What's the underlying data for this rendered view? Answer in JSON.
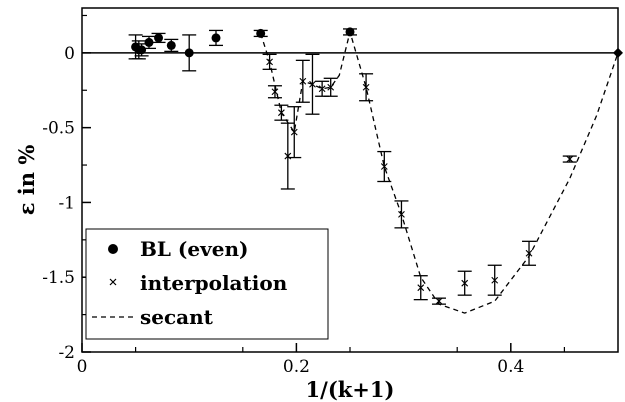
{
  "chart_data": {
    "type": "scatter",
    "xlabel": "1/(k+1)",
    "ylabel": "ε in %",
    "xlim": [
      0,
      0.5
    ],
    "ylim": [
      -2,
      0.3
    ],
    "x_ticks": [
      0,
      0.2,
      0.4
    ],
    "x_tick_labels": [
      "0",
      "0.2",
      "0.4"
    ],
    "y_ticks": [
      0,
      -0.5,
      -1,
      -1.5,
      -2
    ],
    "y_tick_labels": [
      "0",
      "-0.5",
      "-1",
      "-1.5",
      "-2"
    ],
    "grid": false,
    "reference_line": 0,
    "legend_position": "bottom-left",
    "legend": [
      {
        "label": "BL (even)",
        "marker": "circle"
      },
      {
        "label": "interpolation",
        "marker": "x"
      },
      {
        "label": "secant",
        "marker": "dashed-line"
      }
    ],
    "series": [
      {
        "name": "BL (even)",
        "marker": "circle",
        "points": [
          {
            "x": 0.05,
            "y": 0.04,
            "err": 0.08
          },
          {
            "x": 0.053,
            "y": 0.02,
            "err": 0.06
          },
          {
            "x": 0.0556,
            "y": 0.02,
            "err": 0.04
          },
          {
            "x": 0.0625,
            "y": 0.07,
            "err": 0.04
          },
          {
            "x": 0.0714,
            "y": 0.1,
            "err": 0.03
          },
          {
            "x": 0.0833,
            "y": 0.05,
            "err": 0.04
          },
          {
            "x": 0.1,
            "y": 0.0,
            "err": 0.12
          },
          {
            "x": 0.125,
            "y": 0.1,
            "err": 0.05
          },
          {
            "x": 0.1667,
            "y": 0.13,
            "err": 0.02
          },
          {
            "x": 0.25,
            "y": 0.14,
            "err": 0.02
          },
          {
            "x": 0.5,
            "y": 0.0,
            "err": 0
          }
        ]
      },
      {
        "name": "interpolation",
        "marker": "x",
        "points": [
          {
            "x": 0.175,
            "y": -0.06,
            "err": 0.05
          },
          {
            "x": 0.18,
            "y": -0.26,
            "err": 0.04
          },
          {
            "x": 0.186,
            "y": -0.4,
            "err": 0.05
          },
          {
            "x": 0.192,
            "y": -0.69,
            "err": 0.22
          },
          {
            "x": 0.198,
            "y": -0.53,
            "err": 0.17
          },
          {
            "x": 0.206,
            "y": -0.19,
            "err": 0.14
          },
          {
            "x": 0.215,
            "y": -0.21,
            "err": 0.2
          },
          {
            "x": 0.224,
            "y": -0.24,
            "err": 0.05
          },
          {
            "x": 0.232,
            "y": -0.23,
            "err": 0.06
          },
          {
            "x": 0.265,
            "y": -0.23,
            "err": 0.09
          },
          {
            "x": 0.282,
            "y": -0.76,
            "err": 0.1
          },
          {
            "x": 0.298,
            "y": -1.08,
            "err": 0.09
          },
          {
            "x": 0.316,
            "y": -1.57,
            "err": 0.08
          },
          {
            "x": 0.333,
            "y": -1.66,
            "err": 0.02
          },
          {
            "x": 0.357,
            "y": -1.54,
            "err": 0.08
          },
          {
            "x": 0.385,
            "y": -1.52,
            "err": 0.1
          },
          {
            "x": 0.417,
            "y": -1.34,
            "err": 0.08
          },
          {
            "x": 0.455,
            "y": -0.71,
            "err": 0.02
          }
        ]
      },
      {
        "name": "secant",
        "marker": "dashed-line",
        "points": [
          {
            "x": 0.1667,
            "y": 0.13
          },
          {
            "x": 0.175,
            "y": -0.06
          },
          {
            "x": 0.186,
            "y": -0.4
          },
          {
            "x": 0.198,
            "y": -0.53
          },
          {
            "x": 0.206,
            "y": -0.19
          },
          {
            "x": 0.215,
            "y": -0.21
          },
          {
            "x": 0.224,
            "y": -0.24
          },
          {
            "x": 0.232,
            "y": -0.23
          },
          {
            "x": 0.24,
            "y": -0.15
          },
          {
            "x": 0.25,
            "y": 0.14
          },
          {
            "x": 0.265,
            "y": -0.23
          },
          {
            "x": 0.282,
            "y": -0.76
          },
          {
            "x": 0.298,
            "y": -1.08
          },
          {
            "x": 0.316,
            "y": -1.5
          },
          {
            "x": 0.333,
            "y": -1.68
          },
          {
            "x": 0.357,
            "y": -1.74
          },
          {
            "x": 0.385,
            "y": -1.66
          },
          {
            "x": 0.417,
            "y": -1.36
          },
          {
            "x": 0.455,
            "y": -0.84
          },
          {
            "x": 0.48,
            "y": -0.42
          },
          {
            "x": 0.5,
            "y": 0.0
          }
        ]
      }
    ]
  }
}
